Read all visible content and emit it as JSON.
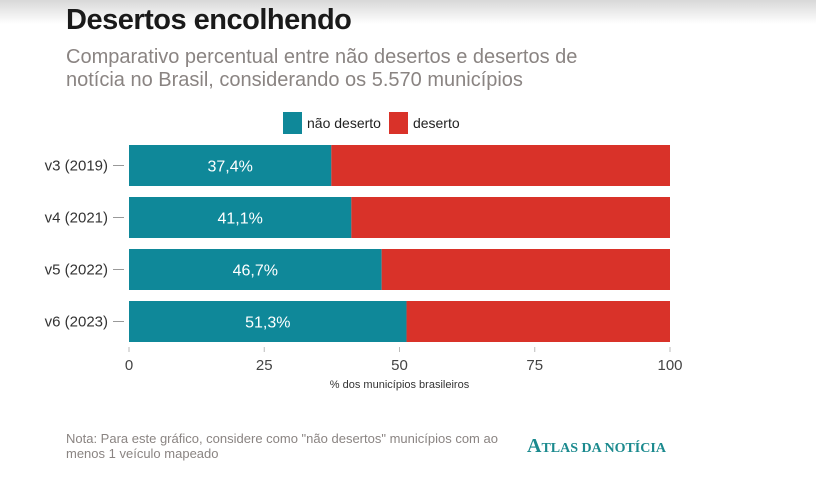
{
  "title": "Desertos encolhendo",
  "subtitle": "Comparativo percentual entre não desertos e desertos de notícia no Brasil, considerando os 5.570 municípios",
  "note": "Nota: Para este gráfico, considere como \"não desertos\" municípios com ao menos 1 veículo mapeado",
  "logo": "ATLAS DA NOTÍCIA",
  "chart_data": {
    "type": "bar",
    "orientation": "horizontal",
    "stacked": true,
    "categories": [
      "v3 (2019)",
      "v4 (2021)",
      "v5 (2022)",
      "v6 (2023)"
    ],
    "series": [
      {
        "name": "não deserto",
        "values": [
          37.4,
          41.1,
          46.7,
          51.3
        ],
        "color": "#0f8899",
        "labels": [
          "37,4%",
          "41,1%",
          "46,7%",
          "51,3%"
        ]
      },
      {
        "name": "deserto",
        "values": [
          62.6,
          58.9,
          53.3,
          48.7
        ],
        "color": "#d93229"
      }
    ],
    "xlabel": "% dos municípios brasileiros",
    "xlim": [
      0,
      100
    ],
    "xticks": [
      "0",
      "25",
      "50",
      "75",
      "100"
    ],
    "legend": "top"
  }
}
